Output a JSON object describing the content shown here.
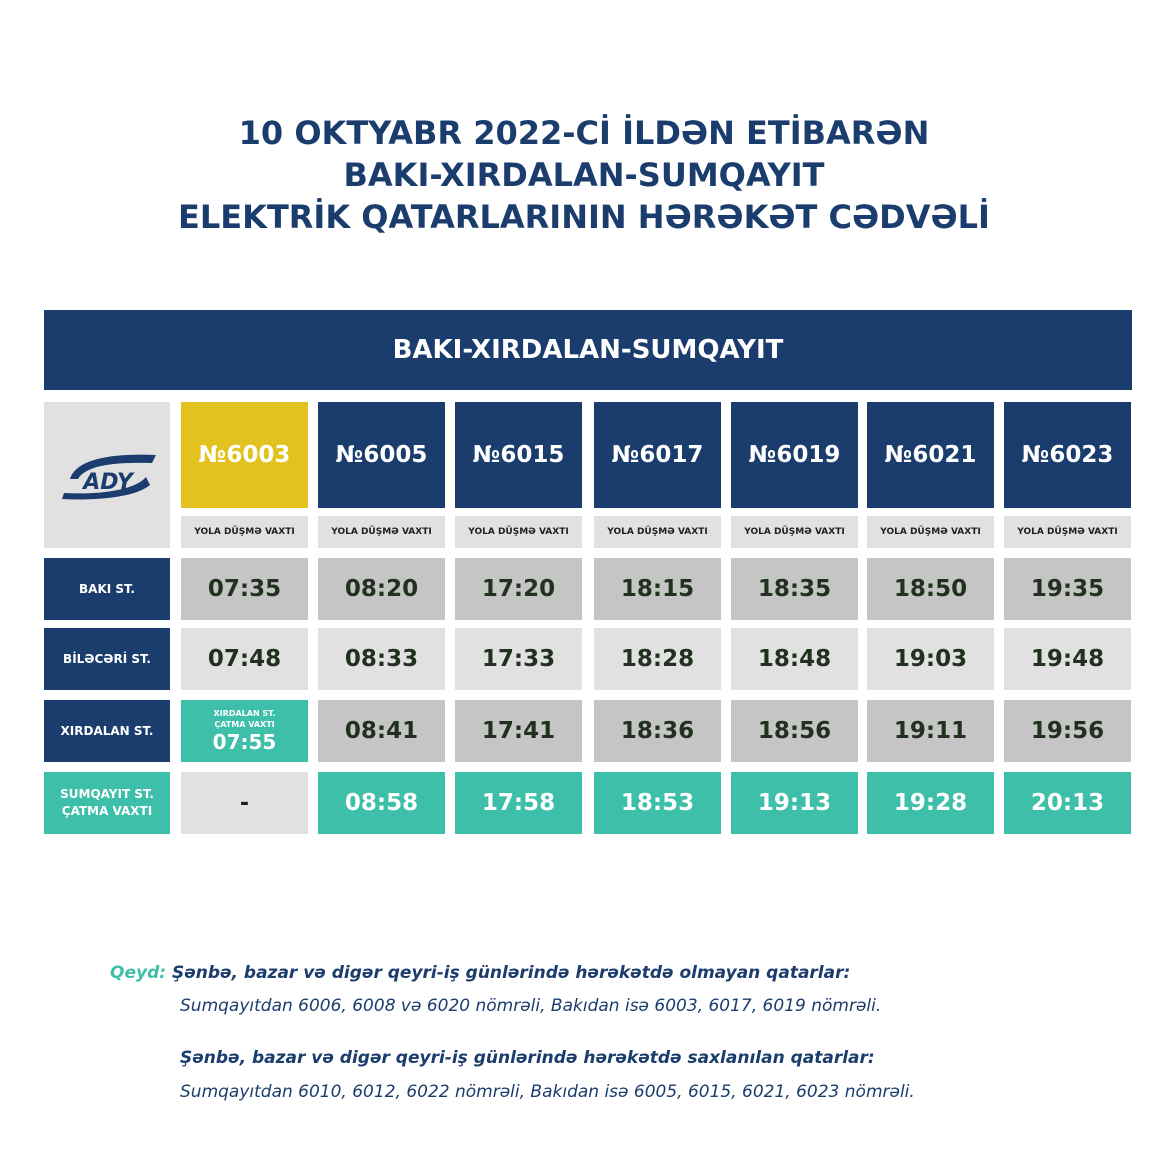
{
  "title": {
    "line1": "10 OKTYABR 2022-Cİ İLDƏN ETİBARƏN",
    "line2": "BAKI-XIRDALAN-SUMQAYIT",
    "line3": "ELEKTRİK QATARLARININ HƏRƏKƏT CƏDVƏLİ"
  },
  "banner": "BAKI-XIRDALAN-SUMQAYIT",
  "logo_text": "ADY",
  "trains": [
    "№6003",
    "№6005",
    "№6015",
    "№6017",
    "№6019",
    "№6021",
    "№6023"
  ],
  "departure_label": "YOLA DÜŞMƏ VAXTI",
  "rows": [
    {
      "label": "BAKI ST.",
      "times": [
        "07:35",
        "08:20",
        "17:20",
        "18:15",
        "18:35",
        "18:50",
        "19:35"
      ]
    },
    {
      "label": "BİLƏCƏRİ ST.",
      "times": [
        "07:48",
        "08:33",
        "17:33",
        "18:28",
        "18:48",
        "19:03",
        "19:48"
      ]
    },
    {
      "label": "XIRDALAN ST.",
      "times": [
        "",
        "08:41",
        "17:41",
        "18:36",
        "18:56",
        "19:11",
        "19:56"
      ]
    },
    {
      "label_line1": "SUMQAYIT ST.",
      "label_line2": "ÇATMA VAXTI",
      "times": [
        "-",
        "08:58",
        "17:58",
        "18:53",
        "19:13",
        "19:28",
        "20:13"
      ]
    }
  ],
  "special_cell": {
    "line1": "XIRDALAN ST.",
    "line2": "ÇATMA VAXTI",
    "time": "07:55"
  },
  "note": {
    "label": "Qeyd:",
    "line1": "Şənbə, bazar və digər qeyri-iş günlərində hərəkətdə olmayan qatarlar:",
    "line2": "Sumqayıtdan 6006, 6008 və 6020 nömrəli, Bakıdan isə 6003, 6017, 6019 nömrəli.",
    "line3": "Şənbə, bazar və digər qeyri-iş günlərində hərəkətdə saxlanılan qatarlar:",
    "line4": "Sumqayıtdan  6010, 6012, 6022  nömrəli, Bakıdan isə 6005, 6015, 6021, 6023 nömrəli."
  },
  "colors": {
    "navy": "#1b3d6e",
    "yellow": "#e2c21f",
    "teal": "#3dbfa9",
    "grey_dark": "#c6c5c6",
    "grey_light": "#e1e1e2"
  }
}
